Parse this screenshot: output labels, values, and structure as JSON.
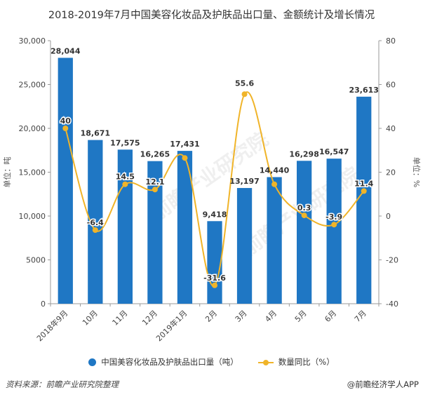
{
  "title": "2018-2019年7月中国美容化妆品及护肤品出口量、金额统计及增长情况",
  "colors": {
    "bar": "#1f77c4",
    "line": "#f0b429",
    "axis": "#999999",
    "text": "#333333"
  },
  "chart_data": {
    "type": "bar+line",
    "categories": [
      "2018年9月",
      "10月",
      "11月",
      "12月",
      "2019年1月",
      "2月",
      "3月",
      "4月",
      "5月",
      "6月",
      "7月"
    ],
    "series": [
      {
        "name": "中国美容化妆品及护肤品出口量（吨）",
        "type": "bar",
        "axis": "left",
        "values": [
          28044,
          18671,
          17575,
          16265,
          17431,
          9418,
          13197,
          14440,
          16298,
          16547,
          23613
        ],
        "labels": [
          "28,044",
          "18,671",
          "17,575",
          "16,265",
          "17,431",
          "9,418",
          "13,197",
          "14,440",
          "16,298",
          "16,547",
          "23,613"
        ]
      },
      {
        "name": "数量同比（%）",
        "type": "line",
        "axis": "right",
        "values": [
          40,
          -6.4,
          14.5,
          12.1,
          26.5,
          -31.6,
          55.6,
          14.5,
          0.3,
          -3.9,
          11.4
        ],
        "labels": [
          "40",
          "-6.4",
          "14.5",
          "12.1",
          "",
          "-31.6",
          "55.6",
          "",
          "0.3",
          "-3.9",
          "11.4"
        ]
      }
    ],
    "y_left": {
      "label": "单位：吨",
      "min": 0,
      "max": 30000,
      "ticks": [
        0,
        5000,
        10000,
        15000,
        20000,
        25000,
        30000
      ],
      "tick_labels": [
        "0",
        "5000",
        "10,000",
        "15,000",
        "20,000",
        "25,000",
        "30,000"
      ]
    },
    "y_right": {
      "label": "单位：%",
      "min": -40,
      "max": 80,
      "ticks": [
        -40,
        -20,
        0,
        20,
        40,
        60,
        80
      ],
      "tick_labels": [
        "-40",
        "-20",
        "0",
        "20",
        "40",
        "60",
        "80"
      ]
    },
    "legend_position": "bottom"
  },
  "legend": {
    "bar_label": "中国美容化妆品及护肤品出口量（吨）",
    "line_label": "数量同比（%）"
  },
  "footer": {
    "source": "资料来源：前瞻产业研究院整理",
    "brand": "@前瞻经济学人APP"
  },
  "watermark": "前瞻产业研究院"
}
